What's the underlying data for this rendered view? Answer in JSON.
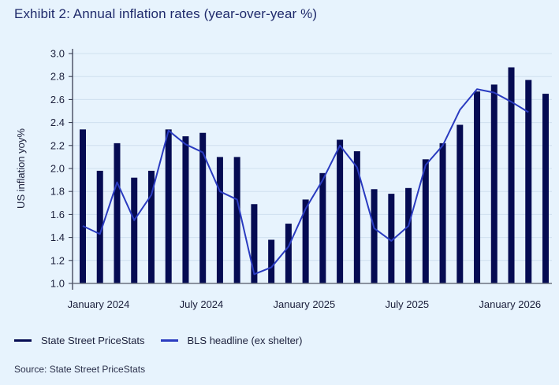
{
  "title": "Exhibit 2: Annual inflation rates (year-over-year %)",
  "source": "Source: State Street PriceStats",
  "colors": {
    "bars": "#050b52",
    "line": "#2a3bc0",
    "grid": "#cfe0ef",
    "axis": "#6b7280"
  },
  "chart_data": {
    "type": "bar",
    "title": "Exhibit 2: Annual inflation rates (year-over-year %)",
    "xlabel": "",
    "ylabel": "US inflation yoy%",
    "ylim": [
      1.0,
      3.0
    ],
    "yticks": [
      "1.0",
      "1.2",
      "1.4",
      "1.6",
      "1.8",
      "2.0",
      "2.2",
      "2.4",
      "2.6",
      "2.8",
      "3.0"
    ],
    "grid": true,
    "legend_position": "bottom-left",
    "categories": [
      "Jan 2024",
      "Feb 2024",
      "Mar 2024",
      "Apr 2024",
      "May 2024",
      "Jun 2024",
      "Jul 2024",
      "Aug 2024",
      "Sep 2024",
      "Oct 2024",
      "Nov 2024",
      "Dec 2024",
      "Jan 2025",
      "Feb 2025",
      "Mar 2025",
      "Apr 2025",
      "May 2025",
      "Jun 2025",
      "Jul 2025",
      "Aug 2025",
      "Sep 2025",
      "Oct 2025",
      "Nov 2025",
      "Dec 2025",
      "Jan 2026",
      "Feb 2026",
      "Mar 2026",
      "Apr 2026"
    ],
    "xtick_labels": [
      {
        "index": 0,
        "label": "January 2024"
      },
      {
        "index": 6,
        "label": "July 2024"
      },
      {
        "index": 12,
        "label": "January 2025"
      },
      {
        "index": 18,
        "label": "July 2025"
      },
      {
        "index": 24,
        "label": "January 2026"
      }
    ],
    "series": [
      {
        "name": "State Street PriceStats",
        "kind": "bar",
        "values": [
          2.34,
          1.98,
          2.22,
          1.92,
          1.98,
          2.34,
          2.28,
          2.31,
          2.1,
          2.1,
          1.69,
          1.38,
          1.52,
          1.73,
          1.96,
          2.25,
          2.15,
          1.82,
          1.78,
          1.83,
          2.08,
          2.22,
          2.38,
          2.67,
          2.73,
          2.88,
          2.77,
          2.65
        ]
      },
      {
        "name": "BLS headline (ex shelter)",
        "kind": "line",
        "values": [
          1.5,
          1.43,
          1.88,
          1.55,
          1.77,
          2.33,
          2.21,
          2.14,
          1.8,
          1.73,
          1.08,
          1.14,
          1.32,
          1.65,
          1.9,
          2.2,
          2.01,
          1.48,
          1.37,
          1.5,
          2.03,
          2.2,
          2.51,
          2.69,
          2.66,
          2.58,
          2.49,
          null
        ]
      }
    ]
  }
}
